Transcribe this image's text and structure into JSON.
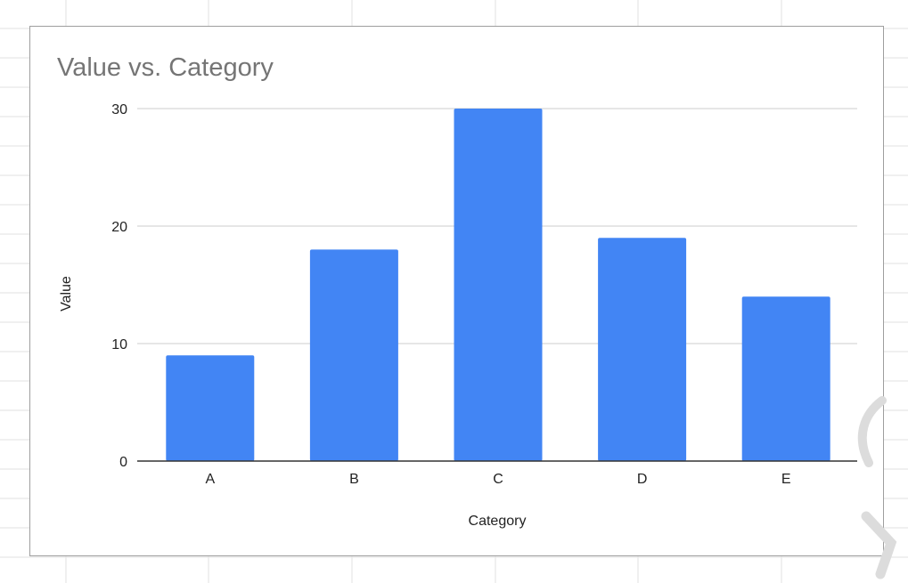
{
  "chart_data": {
    "type": "bar",
    "title": "Value vs. Category",
    "xlabel": "Category",
    "ylabel": "Value",
    "categories": [
      "A",
      "B",
      "C",
      "D",
      "E"
    ],
    "values": [
      9,
      18,
      30,
      19,
      14
    ],
    "ylim": [
      0,
      30
    ],
    "yticks": [
      0,
      10,
      20,
      30
    ],
    "grid": true,
    "bar_color": "#4285f4"
  },
  "colors": {
    "gridline": "#cccccc",
    "axis": "#333333",
    "sheet_grid": "#e2e2e2"
  }
}
